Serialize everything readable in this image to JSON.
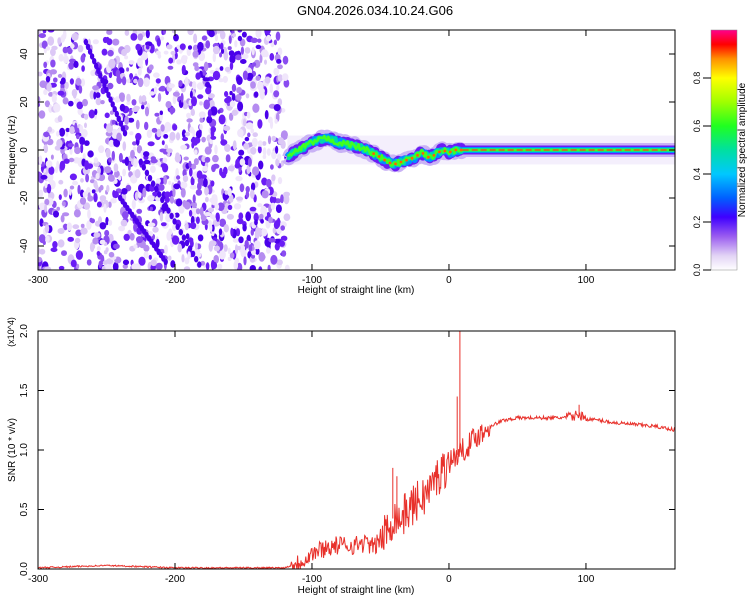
{
  "title": "GN04.2026.034.10.24.G06",
  "chart_data": [
    {
      "type": "heatmap",
      "name": "spectrogram",
      "xlabel": "Height of straight line (km)",
      "ylabel": "Frequency (Hz)",
      "xlim": [
        -300,
        165
      ],
      "ylim": [
        -50,
        50
      ],
      "xticks": [
        -300,
        -200,
        -100,
        0,
        100
      ],
      "yticks": [
        -40,
        -20,
        0,
        20,
        40
      ],
      "noise_region_x": [
        -300,
        -118
      ],
      "doppler_trace": {
        "x": [
          -118,
          -110,
          -100,
          -90,
          -80,
          -70,
          -60,
          -50,
          -45,
          -40,
          -35,
          -30,
          -25,
          -20,
          -15,
          -10,
          -5,
          0,
          5,
          10,
          20,
          40,
          60,
          80,
          100,
          120,
          140,
          165
        ],
        "y": [
          -3,
          0,
          3,
          5,
          3,
          2,
          0,
          -3,
          -5,
          -6,
          -5,
          -4,
          -3,
          -1,
          -3,
          -2,
          0,
          -1,
          0,
          0,
          0,
          0,
          0,
          0,
          0,
          0,
          0,
          0
        ]
      },
      "colorbar": {
        "label": "Normalized spectral amplitude",
        "range": [
          0.0,
          1.0
        ],
        "ticks": [
          "0.0",
          "0.2",
          "0.4",
          "0.6",
          "0.8"
        ]
      }
    },
    {
      "type": "line",
      "name": "snr",
      "xlabel": "Height of straight line (km)",
      "ylabel": "SNR (10 * v/v)",
      "scale_label": "(x10^4)",
      "xlim": [
        -300,
        165
      ],
      "ylim": [
        0.0,
        2.0
      ],
      "xticks": [
        -300,
        -200,
        -100,
        0,
        100
      ],
      "yticks": [
        "0.0",
        "0.5",
        "1.0",
        "1.5",
        "2.0"
      ],
      "series_color": "#e8302a",
      "x": [
        -300,
        -250,
        -200,
        -150,
        -120,
        -110,
        -100,
        -90,
        -80,
        -70,
        -60,
        -55,
        -50,
        -45,
        -40,
        -35,
        -30,
        -25,
        -20,
        -15,
        -10,
        -5,
        0,
        5,
        10,
        15,
        20,
        25,
        30,
        40,
        50,
        60,
        70,
        80,
        90,
        95,
        100,
        110,
        120,
        130,
        140,
        150,
        165
      ],
      "y": [
        0.01,
        0.03,
        0.01,
        0.01,
        0.01,
        0.05,
        0.13,
        0.18,
        0.2,
        0.2,
        0.22,
        0.18,
        0.25,
        0.32,
        0.45,
        0.42,
        0.5,
        0.55,
        0.6,
        0.65,
        0.75,
        0.82,
        0.9,
        0.95,
        1.0,
        1.05,
        1.12,
        1.15,
        1.2,
        1.25,
        1.27,
        1.27,
        1.27,
        1.27,
        1.28,
        1.3,
        1.26,
        1.25,
        1.23,
        1.22,
        1.21,
        1.2,
        1.17
      ],
      "spikes": [
        {
          "x": 8,
          "y": 2.0
        },
        {
          "x": 6,
          "y": 1.45
        },
        {
          "x": -41,
          "y": 0.85
        },
        {
          "x": -38,
          "y": 0.78
        },
        {
          "x": 95,
          "y": 1.38
        }
      ]
    }
  ]
}
